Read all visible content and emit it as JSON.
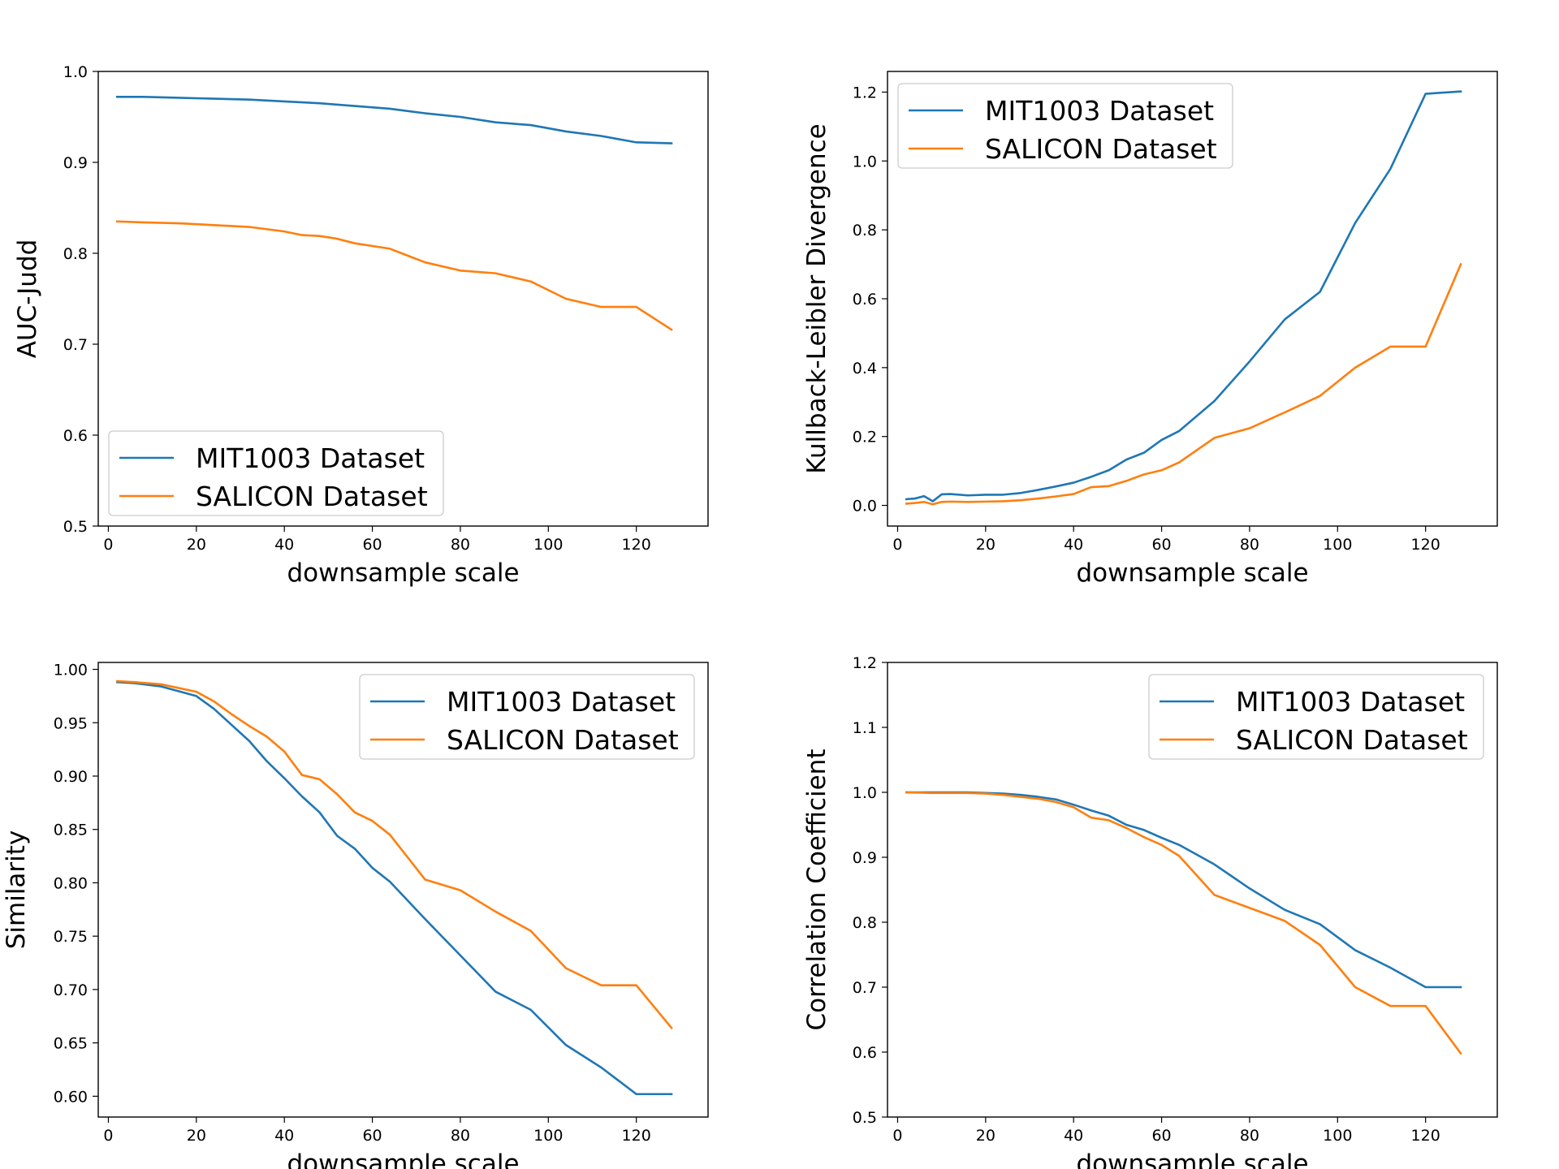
{
  "colors": {
    "MIT1003": "#1f77b4",
    "SALICON": "#ff7f0e"
  },
  "chart_data": [
    {
      "type": "line",
      "ylabel": "AUC-Judd",
      "xlabel": "downsample scale",
      "xlim": [
        -2.3,
        136.3
      ],
      "ylim": [
        0.5,
        1.0
      ],
      "xticks": [
        0,
        20,
        40,
        60,
        80,
        100,
        120
      ],
      "xtick_labels": [
        "0",
        "20",
        "40",
        "60",
        "80",
        "100",
        "120"
      ],
      "yticks": [
        0.5,
        0.6,
        0.7,
        0.8,
        0.9,
        1.0
      ],
      "ytick_labels": [
        "0.5",
        "0.6",
        "0.7",
        "0.8",
        "0.9",
        "1.0"
      ],
      "legend_loc": "lower-left",
      "series": [
        {
          "name": "MIT1003 Dataset",
          "color_key": "MIT1003",
          "x": [
            2,
            8,
            16,
            24,
            32,
            40,
            48,
            56,
            64,
            72,
            80,
            88,
            96,
            104,
            112,
            120,
            128
          ],
          "y": [
            0.972,
            0.972,
            0.971,
            0.97,
            0.969,
            0.967,
            0.965,
            0.962,
            0.959,
            0.954,
            0.95,
            0.944,
            0.941,
            0.934,
            0.929,
            0.922,
            0.921
          ]
        },
        {
          "name": "SALICON Dataset",
          "color_key": "SALICON",
          "x": [
            2,
            8,
            16,
            24,
            32,
            40,
            44,
            48,
            52,
            56,
            64,
            72,
            80,
            88,
            96,
            104,
            112,
            120,
            128
          ],
          "y": [
            0.835,
            0.834,
            0.833,
            0.831,
            0.829,
            0.824,
            0.82,
            0.819,
            0.816,
            0.811,
            0.805,
            0.79,
            0.781,
            0.778,
            0.769,
            0.75,
            0.741,
            0.741,
            0.716
          ]
        }
      ]
    },
    {
      "type": "line",
      "ylabel": "Kullback-Leibler Divergence",
      "xlabel": "downsample scale",
      "xlim": [
        -2.3,
        136.3
      ],
      "ylim": [
        -0.06,
        1.26
      ],
      "xticks": [
        0,
        20,
        40,
        60,
        80,
        100,
        120
      ],
      "xtick_labels": [
        "0",
        "20",
        "40",
        "60",
        "80",
        "100",
        "120"
      ],
      "yticks": [
        0.0,
        0.2,
        0.4,
        0.6,
        0.8,
        1.0,
        1.2
      ],
      "ytick_labels": [
        "0.0",
        "0.2",
        "0.4",
        "0.6",
        "0.8",
        "1.0",
        "1.2"
      ],
      "legend_loc": "top-left",
      "series": [
        {
          "name": "MIT1003 Dataset",
          "color_key": "MIT1003",
          "x": [
            2,
            4,
            6,
            8,
            10,
            12,
            16,
            20,
            24,
            28,
            32,
            36,
            40,
            44,
            48,
            52,
            56,
            60,
            64,
            72,
            80,
            88,
            96,
            104,
            112,
            120,
            128
          ],
          "y": [
            0.018,
            0.02,
            0.027,
            0.012,
            0.032,
            0.033,
            0.029,
            0.031,
            0.031,
            0.036,
            0.045,
            0.055,
            0.066,
            0.083,
            0.102,
            0.133,
            0.153,
            0.19,
            0.216,
            0.303,
            0.418,
            0.54,
            0.62,
            0.82,
            0.977,
            1.195,
            1.202
          ]
        },
        {
          "name": "SALICON Dataset",
          "color_key": "SALICON",
          "x": [
            2,
            4,
            6,
            8,
            10,
            12,
            16,
            20,
            24,
            28,
            32,
            36,
            40,
            44,
            48,
            52,
            56,
            60,
            64,
            72,
            80,
            88,
            96,
            104,
            112,
            120,
            128
          ],
          "y": [
            0.005,
            0.007,
            0.01,
            0.003,
            0.01,
            0.011,
            0.01,
            0.011,
            0.012,
            0.015,
            0.02,
            0.026,
            0.033,
            0.053,
            0.056,
            0.071,
            0.09,
            0.102,
            0.125,
            0.196,
            0.224,
            0.27,
            0.318,
            0.4,
            0.461,
            0.461,
            0.7
          ]
        }
      ]
    },
    {
      "type": "line",
      "ylabel": "Similarity",
      "xlabel": "downsample scale",
      "xlim": [
        -2.3,
        136.3
      ],
      "ylim": [
        0.5805,
        1.0065
      ],
      "xticks": [
        0,
        20,
        40,
        60,
        80,
        100,
        120
      ],
      "xtick_labels": [
        "0",
        "20",
        "40",
        "60",
        "80",
        "100",
        "120"
      ],
      "yticks": [
        0.6,
        0.65,
        0.7,
        0.75,
        0.8,
        0.85,
        0.9,
        0.95,
        1.0
      ],
      "ytick_labels": [
        "0.60",
        "0.65",
        "0.70",
        "0.75",
        "0.80",
        "0.85",
        "0.90",
        "0.95",
        "1.00"
      ],
      "legend_loc": "top-right",
      "series": [
        {
          "name": "MIT1003 Dataset",
          "color_key": "MIT1003",
          "x": [
            2,
            6,
            12,
            20,
            24,
            28,
            32,
            36,
            40,
            44,
            48,
            52,
            56,
            60,
            64,
            72,
            80,
            88,
            96,
            104,
            112,
            120,
            128
          ],
          "y": [
            0.988,
            0.987,
            0.984,
            0.975,
            0.963,
            0.948,
            0.933,
            0.914,
            0.898,
            0.881,
            0.866,
            0.844,
            0.832,
            0.814,
            0.801,
            0.766,
            0.732,
            0.698,
            0.681,
            0.648,
            0.627,
            0.602,
            0.602
          ]
        },
        {
          "name": "SALICON Dataset",
          "color_key": "SALICON",
          "x": [
            2,
            6,
            12,
            20,
            24,
            28,
            32,
            36,
            40,
            44,
            48,
            52,
            56,
            60,
            64,
            72,
            80,
            88,
            96,
            104,
            112,
            120,
            128
          ],
          "y": [
            0.989,
            0.988,
            0.986,
            0.979,
            0.97,
            0.958,
            0.947,
            0.937,
            0.923,
            0.901,
            0.897,
            0.883,
            0.866,
            0.858,
            0.845,
            0.803,
            0.793,
            0.773,
            0.755,
            0.72,
            0.704,
            0.704,
            0.664
          ]
        }
      ]
    },
    {
      "type": "line",
      "ylabel": "Correlation Coefficient",
      "xlabel": "downsample scale",
      "xlim": [
        -2.3,
        136.3
      ],
      "ylim": [
        0.5,
        1.2
      ],
      "xticks": [
        0,
        20,
        40,
        60,
        80,
        100,
        120
      ],
      "xtick_labels": [
        "0",
        "20",
        "40",
        "60",
        "80",
        "100",
        "120"
      ],
      "yticks": [
        0.5,
        0.6,
        0.7,
        0.8,
        0.9,
        1.0,
        1.1,
        1.2
      ],
      "ytick_labels": [
        "0.5",
        "0.6",
        "0.7",
        "0.8",
        "0.9",
        "1.0",
        "1.1",
        "1.2"
      ],
      "legend_loc": "top-right",
      "series": [
        {
          "name": "MIT1003 Dataset",
          "color_key": "MIT1003",
          "x": [
            2,
            8,
            16,
            20,
            24,
            28,
            32,
            36,
            40,
            44,
            48,
            52,
            56,
            60,
            64,
            72,
            80,
            88,
            96,
            104,
            112,
            120,
            128
          ],
          "y": [
            1.0,
            1.0,
            1.0,
            0.999,
            0.998,
            0.996,
            0.993,
            0.989,
            0.981,
            0.972,
            0.964,
            0.95,
            0.942,
            0.93,
            0.919,
            0.889,
            0.852,
            0.819,
            0.797,
            0.757,
            0.73,
            0.7,
            0.7
          ]
        },
        {
          "name": "SALICON Dataset",
          "color_key": "SALICON",
          "x": [
            2,
            8,
            16,
            20,
            24,
            28,
            32,
            36,
            40,
            44,
            48,
            52,
            56,
            60,
            64,
            72,
            80,
            88,
            96,
            104,
            112,
            120,
            128
          ],
          "y": [
            1.0,
            0.999,
            0.999,
            0.998,
            0.996,
            0.993,
            0.99,
            0.985,
            0.977,
            0.961,
            0.957,
            0.945,
            0.931,
            0.919,
            0.902,
            0.842,
            0.822,
            0.802,
            0.765,
            0.7,
            0.671,
            0.671,
            0.598
          ]
        }
      ]
    }
  ]
}
